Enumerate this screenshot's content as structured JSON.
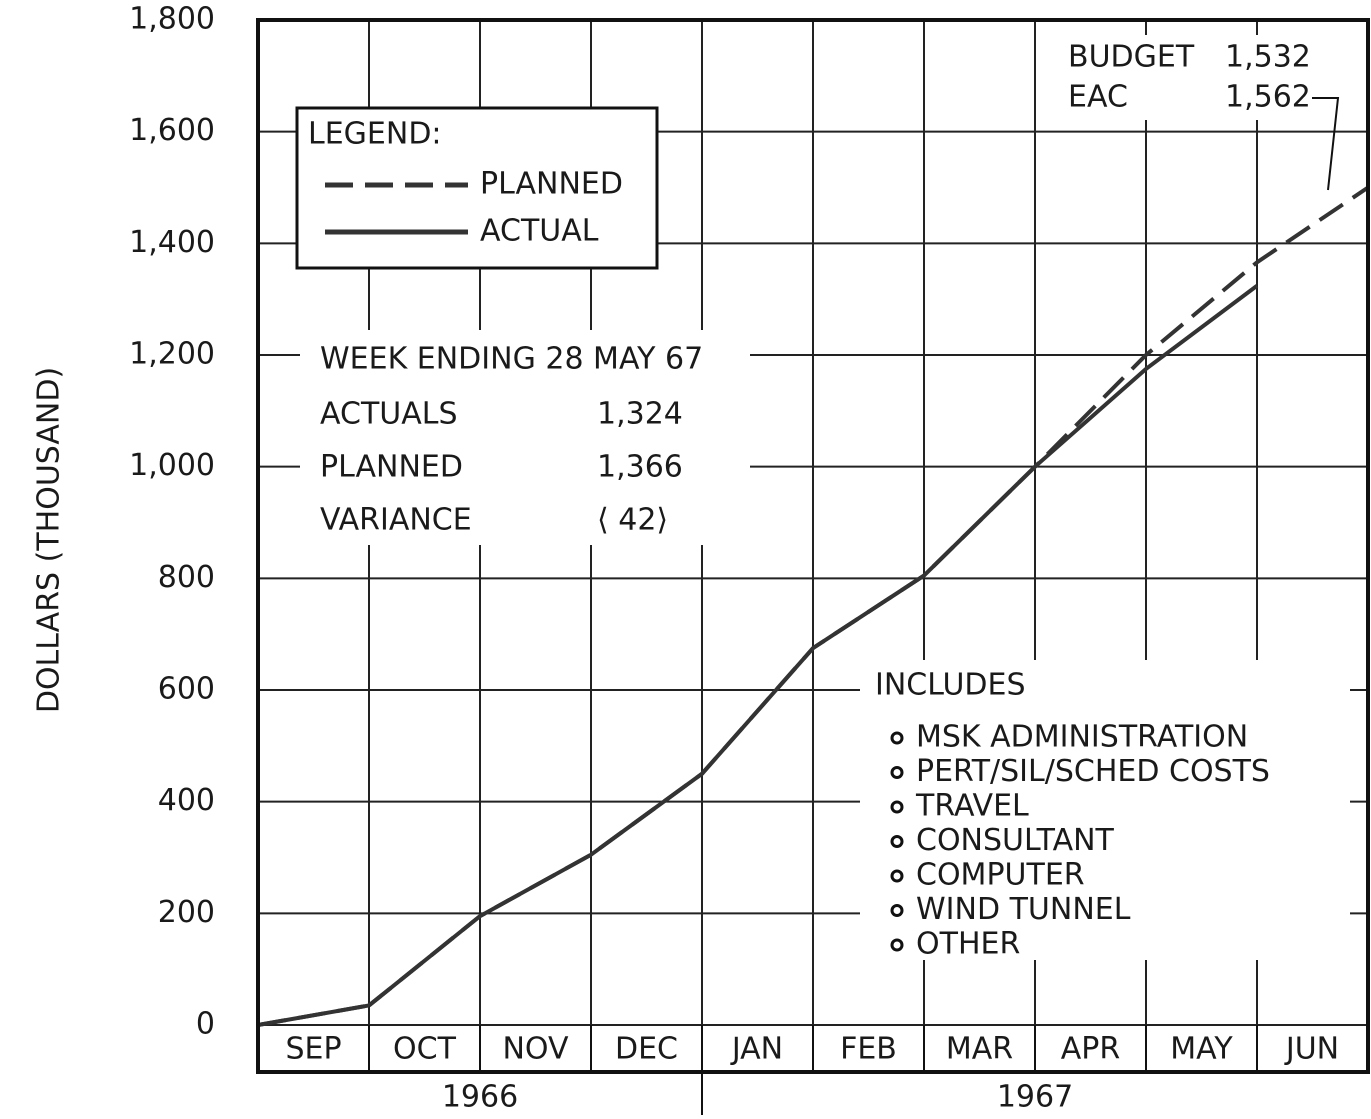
{
  "chart_data": {
    "type": "line",
    "y_label": "DOLLARS (THOUSAND)",
    "categories": [
      "SEP",
      "OCT",
      "NOV",
      "DEC",
      "JAN",
      "FEB",
      "MAR",
      "APR",
      "MAY",
      "JUN"
    ],
    "year_labels": [
      "1966",
      "1967"
    ],
    "series": [
      {
        "name": "PLANNED",
        "color": "#333333",
        "dash": true,
        "values": [
          35,
          195,
          305,
          450,
          675,
          805,
          1000,
          1200,
          1366,
          1500
        ]
      },
      {
        "name": "ACTUAL",
        "color": "#333333",
        "dash": false,
        "values": [
          35,
          195,
          305,
          450,
          675,
          805,
          1000,
          1175,
          1324,
          null
        ]
      }
    ],
    "legend_title": "LEGEND:",
    "ylim": [
      0,
      1800
    ],
    "yticks": [
      0,
      200,
      400,
      600,
      800,
      {
        "value": 1000,
        "label": "1,000"
      },
      {
        "value": 1200,
        "label": "1,200"
      },
      {
        "value": 1400,
        "label": "1,400"
      },
      {
        "value": 1600,
        "label": "1,600"
      },
      {
        "value": 1800,
        "label": "1,800"
      }
    ],
    "grid": true,
    "status": {
      "week_ending": "WEEK ENDING 28 MAY 67",
      "rows": [
        {
          "label": "ACTUALS",
          "value": "1,324"
        },
        {
          "label": "PLANNED",
          "value": "1,366"
        },
        {
          "label": "VARIANCE",
          "value": "⟨ 42⟩"
        }
      ]
    },
    "budget": [
      {
        "label": "BUDGET",
        "value": "1,532"
      },
      {
        "label": "EAC",
        "value": "1,562"
      }
    ],
    "includes_title": "INCLUDES",
    "includes": [
      "MSK ADMINISTRATION",
      "PERT/SIL/SCHED COSTS",
      "TRAVEL",
      "CONSULTANT",
      "COMPUTER",
      "WIND TUNNEL",
      "OTHER"
    ]
  }
}
